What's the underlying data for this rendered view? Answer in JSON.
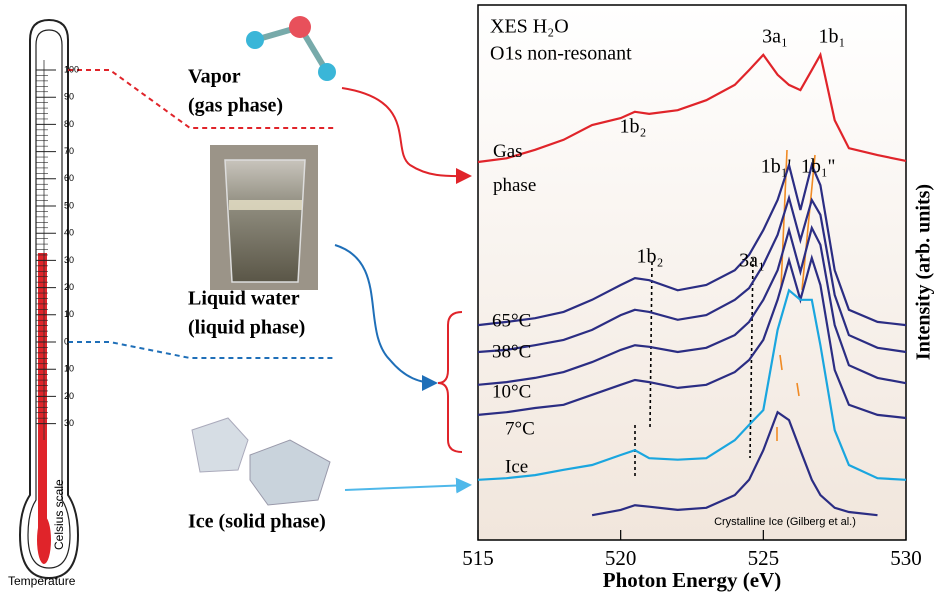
{
  "thermometer": {
    "scale": [
      "100",
      "90",
      "80",
      "70",
      "60",
      "50",
      "40",
      "30",
      "20",
      "10",
      "0",
      "10",
      "20",
      "30"
    ],
    "caption": "Celsius scale",
    "label": "Temperature"
  },
  "phases": {
    "vapor": [
      "Vapor",
      "(gas phase)"
    ],
    "liquid": [
      "Liquid water",
      "(liquid phase)"
    ],
    "ice": [
      "Ice (solid phase)"
    ]
  },
  "chart_data": {
    "type": "line",
    "title": "XES H₂O",
    "subtitle": "O1s non-resonant",
    "xlabel": "Photon Energy (eV)",
    "ylabel": "Intensity (arb. units)",
    "x": [
      515,
      516,
      517,
      518,
      519,
      520,
      520.5,
      521,
      522,
      523,
      524,
      524.5,
      525,
      525.5,
      525.9,
      526.3,
      526.7,
      527,
      527.5,
      528,
      529,
      530
    ],
    "xlim": [
      515,
      530
    ],
    "xticks": [
      515,
      520,
      525,
      530
    ],
    "ylim": [
      0,
      100
    ],
    "series": [
      {
        "name": "Gas phase",
        "color": "#e0242a",
        "values": [
          71.6,
          72.3,
          73.9,
          75.8,
          78.6,
          79.9,
          81.1,
          80.7,
          81.4,
          83.3,
          86.2,
          89.0,
          91.9,
          88.1,
          86.2,
          85.2,
          89.0,
          91.9,
          79.5,
          74.2,
          72.9,
          71.8
        ]
      },
      {
        "name": "65°C",
        "color": "#2b2d83",
        "values": [
          40.7,
          41.3,
          42.0,
          43.2,
          45.5,
          48.3,
          49.6,
          49.2,
          47.3,
          48.3,
          51.1,
          54.0,
          58.7,
          64.4,
          71.0,
          62.5,
          71.0,
          67.2,
          51.1,
          43.6,
          41.3,
          40.7
        ]
      },
      {
        "name": "38°C",
        "color": "#2b2d83",
        "values": [
          35.6,
          36.0,
          36.9,
          37.9,
          39.8,
          42.6,
          43.6,
          43.2,
          41.7,
          42.6,
          45.5,
          47.7,
          52.1,
          57.8,
          64.8,
          56.8,
          64.4,
          61.6,
          46.4,
          38.8,
          36.4,
          35.6
        ]
      },
      {
        "name": "10°C",
        "color": "#2b2d83",
        "values": [
          29.4,
          29.9,
          30.7,
          31.8,
          33.7,
          36.0,
          36.9,
          36.6,
          35.6,
          36.4,
          38.8,
          41.3,
          45.5,
          51.1,
          58.7,
          50.8,
          59.1,
          55.9,
          40.7,
          33.1,
          30.7,
          29.7
        ]
      },
      {
        "name": "7°C",
        "color": "#2b2d83",
        "values": [
          23.7,
          24.2,
          25.0,
          25.6,
          27.5,
          29.4,
          30.3,
          29.9,
          28.8,
          29.4,
          31.8,
          34.1,
          37.9,
          45.5,
          53.0,
          45.5,
          53.4,
          48.3,
          32.2,
          25.6,
          23.7,
          23.1
        ]
      },
      {
        "name": "Ice",
        "color": "#1aa6df",
        "values": [
          11.4,
          11.7,
          12.3,
          13.3,
          14.2,
          16.1,
          17.0,
          15.5,
          15.2,
          15.5,
          18.9,
          21.8,
          24.6,
          39.8,
          47.3,
          45.5,
          45.5,
          36.9,
          20.8,
          14.2,
          11.7,
          11.4
        ]
      },
      {
        "name": "Crystalline Ice (Gilberg et al.)",
        "color": "#2b2d83",
        "values": [
          null,
          null,
          null,
          null,
          4.7,
          5.7,
          6.6,
          6.3,
          5.7,
          6.1,
          8.5,
          11.4,
          17.0,
          24.2,
          22.7,
          17.0,
          11.4,
          8.5,
          6.1,
          5.3,
          4.7,
          null
        ]
      }
    ],
    "annotations": [
      "3a₁",
      "1b₁",
      "1b₂",
      "1b₁'",
      "1b₁''",
      "1b₂",
      "3a₁"
    ]
  }
}
